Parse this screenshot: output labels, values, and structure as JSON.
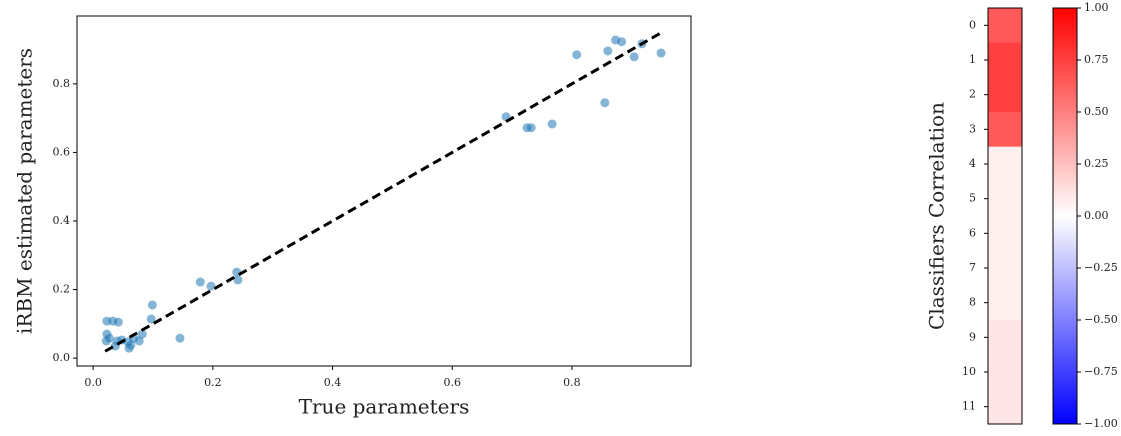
{
  "chart_data": [
    {
      "type": "scatter",
      "xlabel": "True parameters",
      "ylabel": "iRBM estimated parameters",
      "x": [
        0.023,
        0.033,
        0.042,
        0.023,
        0.027,
        0.022,
        0.04,
        0.037,
        0.048,
        0.058,
        0.06,
        0.063,
        0.068,
        0.077,
        0.082,
        0.099,
        0.097,
        0.145,
        0.179,
        0.197,
        0.24,
        0.242,
        0.69,
        0.725,
        0.732,
        0.767,
        0.808,
        0.855,
        0.86,
        0.873,
        0.883,
        0.904,
        0.917,
        0.949
      ],
      "values": [
        0.108,
        0.108,
        0.105,
        0.07,
        0.058,
        0.05,
        0.05,
        0.035,
        0.053,
        0.047,
        0.029,
        0.038,
        0.058,
        0.05,
        0.07,
        0.155,
        0.114,
        0.058,
        0.222,
        0.21,
        0.251,
        0.228,
        0.704,
        0.672,
        0.672,
        0.683,
        0.885,
        0.745,
        0.896,
        0.928,
        0.923,
        0.879,
        0.917,
        0.89
      ],
      "color": "#1f77b4",
      "fit_line": {
        "x": [
          0.02,
          0.95
        ],
        "y": [
          0.02,
          0.95
        ],
        "color": "#000000"
      },
      "xlim": [
        -0.027,
        0.999
      ],
      "ylim": [
        -0.023,
        0.998
      ],
      "xticks": [
        {
          "value": 0,
          "label": "0.0"
        },
        0.2,
        0.4,
        0.6,
        0.8
      ],
      "yticks": [
        {
          "value": 0,
          "label": "0.0"
        },
        0.2,
        0.4,
        0.6,
        0.8
      ]
    },
    {
      "type": "heatmap",
      "ylabel": "Classifiers Correlation",
      "categories": [
        "0",
        "1",
        "2",
        "3",
        "4",
        "5",
        "6",
        "7",
        "8",
        "9",
        "10",
        "11"
      ],
      "values": [
        0.65,
        0.75,
        0.75,
        0.65,
        0.06,
        0.06,
        0.06,
        0.06,
        0.06,
        0.1,
        0.1,
        0.1
      ],
      "clim": [
        -1,
        1
      ],
      "colorbar_ticks": [
        {
          "value": 1,
          "label": "1.00"
        },
        {
          "value": 0.75,
          "label": "0.75"
        },
        {
          "value": 0.5,
          "label": "0.50"
        },
        {
          "value": 0.25,
          "label": "0.25"
        },
        {
          "value": 0,
          "label": "0.00"
        },
        {
          "value": -0.25,
          "label": "−0.25"
        },
        {
          "value": -0.5,
          "label": "−0.50"
        },
        {
          "value": -0.75,
          "label": "−0.75"
        },
        {
          "value": -1,
          "label": "−1.00"
        }
      ]
    }
  ]
}
